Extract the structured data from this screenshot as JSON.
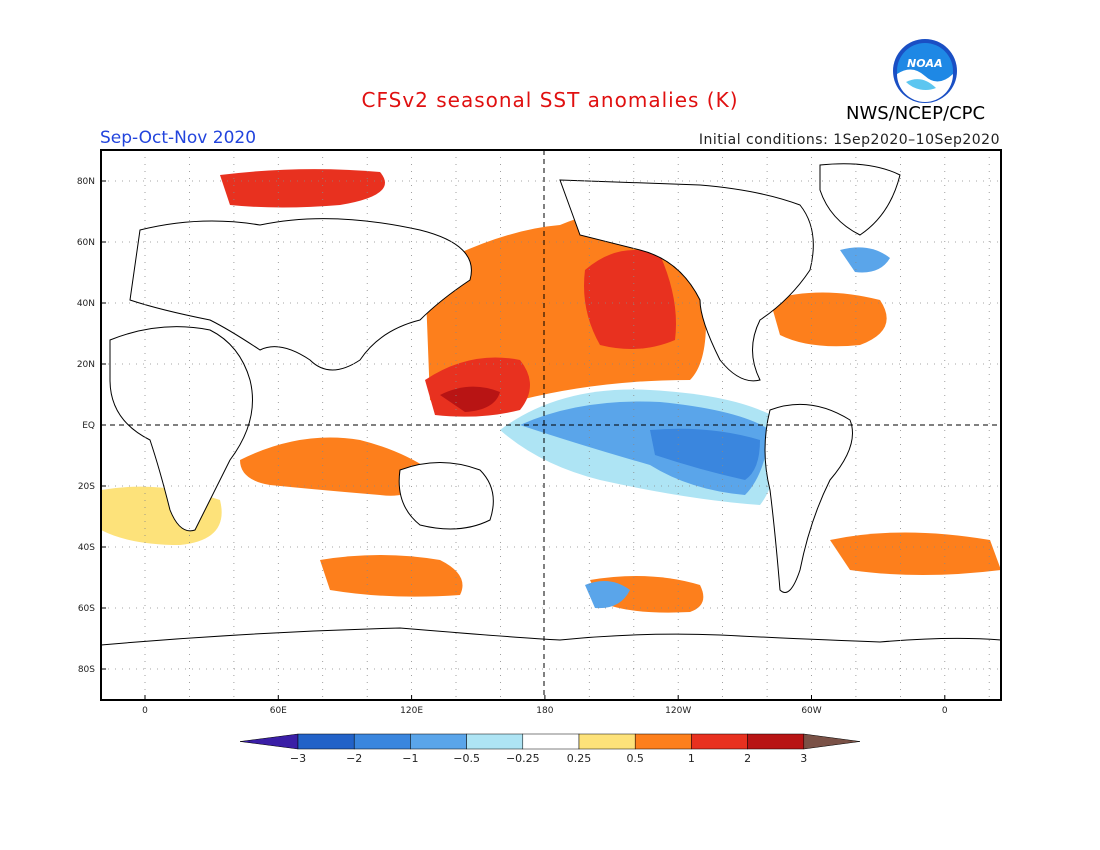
{
  "title": "CFSv2 seasonal SST anomalies (K)",
  "season": "Sep-Oct-Nov 2020",
  "initial_conditions": "Initial conditions: 1Sep2020–10Sep2020",
  "organization": "NWS/NCEP/CPC",
  "logo_text": "NOAA",
  "latitude_labels": [
    "80N",
    "60N",
    "40N",
    "20N",
    "EQ",
    "20S",
    "40S",
    "60S",
    "80S"
  ],
  "longitude_labels": [
    "0",
    "60E",
    "120E",
    "180",
    "120W",
    "60W",
    "0"
  ],
  "colorbar": {
    "tick_labels": [
      "−3",
      "−2",
      "−1",
      "−0.5",
      "−0.25",
      "0.25",
      "0.5",
      "1",
      "2",
      "3"
    ],
    "colors": [
      "#3a1ea6",
      "#2262c8",
      "#3a86de",
      "#5aa5ea",
      "#aee4f4",
      "#ffffff",
      "#fde27a",
      "#fd7f1c",
      "#e8311f",
      "#b81414",
      "#7a5146"
    ]
  },
  "colors": {
    "title": "#e01010",
    "season": "#2244dd",
    "land": "#ffffff",
    "coastline": "#000000"
  },
  "anomaly_features": [
    {
      "region": "North Pacific",
      "level": "2"
    },
    {
      "region": "Equatorial Central/East Pacific",
      "level": "-1"
    },
    {
      "region": "Western Pacific / Maritime Continent",
      "level": "2"
    },
    {
      "region": "Arctic north of Greenland/Siberia",
      "level": "2"
    },
    {
      "region": "Southern Ocean patches",
      "level": "1"
    }
  ]
}
